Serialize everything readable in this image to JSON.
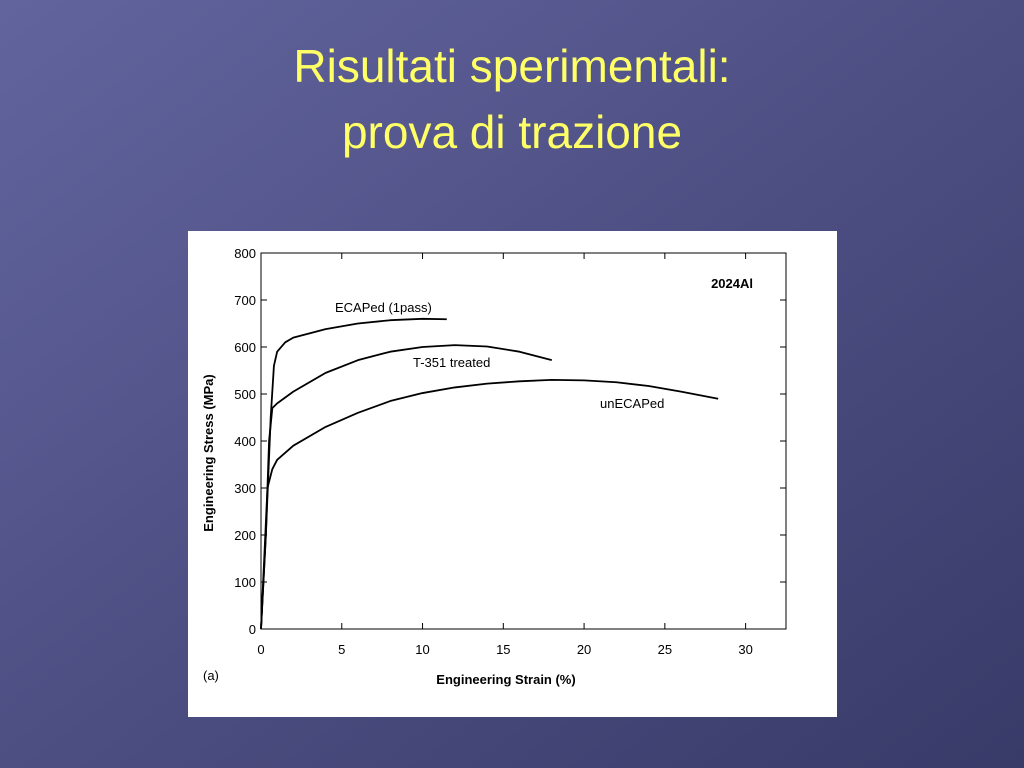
{
  "slide": {
    "title_lines": [
      "Risultati sperimentali:",
      "prova di trazione"
    ]
  },
  "chart_data": {
    "type": "line",
    "annotations": [
      "2024Al",
      "(a)"
    ],
    "xlabel": "Engineering  Strain (%)",
    "ylabel": "Engineering Stress (MPa)",
    "xlim": [
      0,
      32.5
    ],
    "xticks": [
      0,
      5,
      10,
      15,
      20,
      25,
      30
    ],
    "ylim": [
      0,
      800
    ],
    "yticks": [
      0,
      100,
      200,
      300,
      400,
      500,
      600,
      700,
      800
    ],
    "series": [
      {
        "name": "ECAPed (1pass)",
        "color": "#000000",
        "x": [
          0,
          0.3,
          0.6,
          0.8,
          1,
          1.5,
          2,
          4,
          6,
          8,
          10,
          11.5
        ],
        "values": [
          0,
          200,
          450,
          560,
          590,
          610,
          620,
          638,
          650,
          657,
          660,
          659
        ]
      },
      {
        "name": "T-351 treated",
        "color": "#000000",
        "x": [
          0,
          0.3,
          0.5,
          0.7,
          1,
          2,
          4,
          6,
          8,
          10,
          12,
          14,
          16,
          18
        ],
        "values": [
          0,
          200,
          400,
          470,
          480,
          505,
          545,
          572,
          590,
          600,
          604,
          601,
          590,
          572
        ]
      },
      {
        "name": "unECAPed",
        "color": "#000000",
        "x": [
          0,
          0.2,
          0.4,
          0.7,
          1,
          2,
          4,
          6,
          8,
          10,
          12,
          14,
          16,
          18,
          20,
          22,
          24,
          26,
          28.3
        ],
        "values": [
          0,
          150,
          300,
          340,
          360,
          390,
          430,
          460,
          485,
          502,
          514,
          522,
          527,
          530,
          529,
          525,
          517,
          505,
          490
        ]
      }
    ]
  }
}
